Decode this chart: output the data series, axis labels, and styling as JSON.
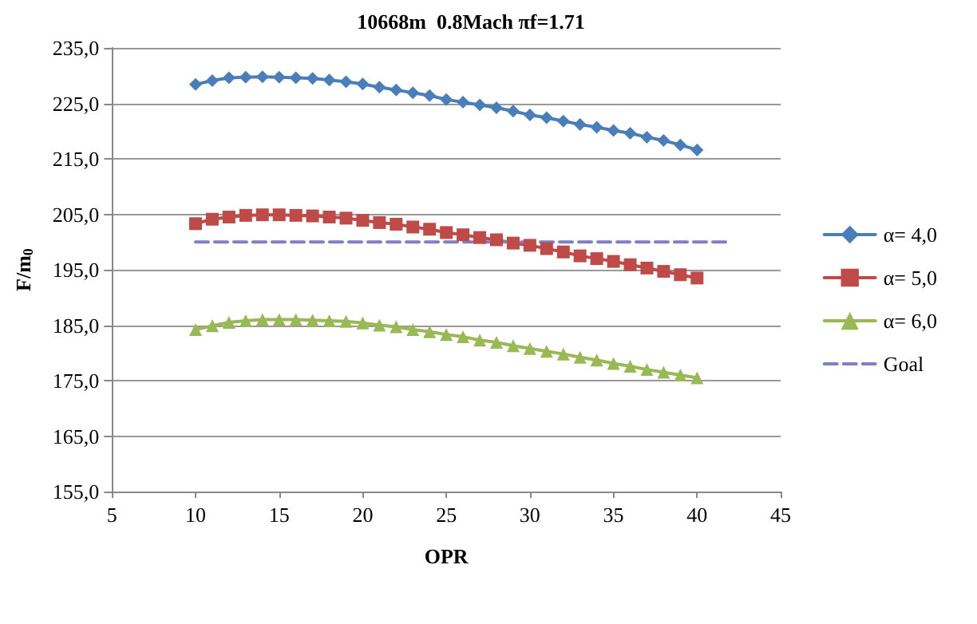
{
  "chart_data": {
    "type": "line",
    "title": "10668m  0.8Mach πf=1.71",
    "xlabel": "OPR",
    "ylabel": "F/m$_{0}$",
    "x": [
      10,
      11,
      12,
      13,
      14,
      15,
      16,
      17,
      18,
      19,
      20,
      21,
      22,
      23,
      24,
      25,
      26,
      27,
      28,
      29,
      30,
      31,
      32,
      33,
      34,
      35,
      36,
      37,
      38,
      39,
      40
    ],
    "series": [
      {
        "name": "α= 4,0",
        "color": "#4a7ebb",
        "marker": "diamond",
        "values": [
          228.4,
          229.1,
          229.6,
          229.7,
          229.8,
          229.7,
          229.6,
          229.5,
          229.2,
          228.9,
          228.5,
          227.9,
          227.4,
          226.9,
          226.4,
          225.7,
          225.2,
          224.7,
          224.2,
          223.6,
          222.9,
          222.4,
          221.8,
          221.2,
          220.7,
          220.1,
          219.6,
          218.9,
          218.3,
          217.5,
          216.6
        ]
      },
      {
        "name": "α= 5,0",
        "color": "#be4b48",
        "marker": "square",
        "values": [
          203.3,
          204.1,
          204.5,
          204.8,
          204.9,
          204.9,
          204.8,
          204.7,
          204.5,
          204.3,
          203.9,
          203.5,
          203.2,
          202.7,
          202.3,
          201.7,
          201.3,
          200.8,
          200.4,
          199.8,
          199.4,
          198.8,
          198.2,
          197.5,
          197.0,
          196.5,
          195.9,
          195.3,
          194.7,
          194.1,
          193.5
        ]
      },
      {
        "name": "α= 6,0",
        "color": "#98b954",
        "marker": "triangle",
        "values": [
          184.2,
          184.9,
          185.5,
          185.8,
          186.0,
          186.0,
          186.0,
          185.9,
          185.8,
          185.7,
          185.4,
          185.0,
          184.7,
          184.2,
          183.8,
          183.3,
          182.9,
          182.3,
          181.9,
          181.3,
          180.8,
          180.3,
          179.8,
          179.2,
          178.7,
          178.1,
          177.6,
          177.0,
          176.5,
          176.0,
          175.5
        ]
      },
      {
        "name": "Goal",
        "color": "#7f7fc8",
        "marker": "none",
        "line_style": "dashed",
        "x": [
          10,
          42
        ],
        "values": [
          200.0,
          200.0
        ]
      }
    ],
    "xlim": [
      5,
      45
    ],
    "xticks": [
      5,
      10,
      15,
      20,
      25,
      30,
      35,
      40,
      45
    ],
    "ylim": [
      155,
      235
    ],
    "yticks": [
      {
        "value": 155,
        "label": "155,0"
      },
      {
        "value": 165,
        "label": "165,0"
      },
      {
        "value": 175,
        "label": "175,0"
      },
      {
        "value": 185,
        "label": "185,0"
      },
      {
        "value": 195,
        "label": "195,0"
      },
      {
        "value": 205,
        "label": "205,0"
      },
      {
        "value": 215,
        "label": "215,0"
      },
      {
        "value": 225,
        "label": "225,0"
      },
      {
        "value": 235,
        "label": "235,0"
      }
    ],
    "grid": "y",
    "legend": "right"
  }
}
